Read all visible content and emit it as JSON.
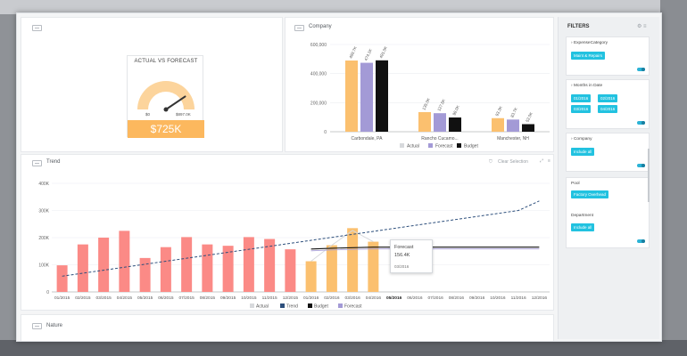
{
  "gauge": {
    "title": "ACTUAL VS FORECAST",
    "min_label": "$0",
    "max_label": "$897.0K",
    "value_label": "$725K",
    "value_fraction": 0.81
  },
  "company_panel": {
    "title": "Company"
  },
  "trend_panel": {
    "title": "Trend",
    "clear_selection": "Clear Selection"
  },
  "next_panel": {
    "title": "Nature"
  },
  "tooltip": {
    "series": "Forecast",
    "value": "156.4K",
    "date": "03/2016"
  },
  "filters": {
    "title": "FILTERS",
    "cards": [
      {
        "label": "ExpenseCategory",
        "chips": [
          "Maint & Repairs"
        ]
      },
      {
        "label": "Months in Date",
        "chips": [
          "01/2016",
          "02/2016",
          "03/2016",
          "04/2016"
        ]
      },
      {
        "label": "Company",
        "chips": [
          "Include all"
        ]
      },
      {
        "label": "Pool",
        "chips": [
          "Factory Overhead"
        ]
      },
      {
        "label": "Department",
        "chips": [
          "Include all"
        ]
      }
    ]
  },
  "colors": {
    "actual": "#fbc06f",
    "forecast": "#a39ad6",
    "budget": "#111111",
    "trend_past": "#fb8a86",
    "trend_line": "#2d4f7c",
    "chip": "#22c2e0"
  },
  "chart_data": [
    {
      "type": "bar",
      "categories": [
        "Carbondale, PA",
        "Rancho Cucamo...",
        "Manchester, NH"
      ],
      "series": [
        {
          "name": "Actual",
          "values": [
            489700,
            135000,
            93300
          ],
          "labels": [
            "489.7K",
            "135.0K",
            "93.3K"
          ]
        },
        {
          "name": "Forecast",
          "values": [
            474100,
            127500,
            83700
          ],
          "labels": [
            "474.1K",
            "127.5K",
            "83.7K"
          ]
        },
        {
          "name": "Budget",
          "values": [
            491000,
            98000,
            52000
          ],
          "labels": [
            "491.0K",
            "98.0K",
            "52.0K"
          ]
        }
      ],
      "yticks": [
        "0",
        "200,000",
        "400,000",
        "600,000"
      ],
      "ylim": [
        0,
        600000
      ],
      "legend": [
        "Actual",
        "Forecast",
        "Budget"
      ],
      "legend_position": "bottom"
    },
    {
      "type": "bar",
      "categories": [
        "01/2015",
        "02/2015",
        "03/2015",
        "04/2015",
        "05/2015",
        "06/2015",
        "07/2015",
        "08/2015",
        "09/2015",
        "10/2015",
        "11/2015",
        "12/2015",
        "01/2016",
        "02/2016",
        "03/2016",
        "04/2016",
        "05/2016",
        "06/2016",
        "07/2016",
        "08/2016",
        "09/2016",
        "10/2016",
        "11/2016",
        "12/2016"
      ],
      "series": [
        {
          "name": "Actual",
          "values": [
            98000,
            175000,
            200000,
            225000,
            125000,
            165000,
            202000,
            175000,
            170000,
            202000,
            195000,
            157000,
            113000,
            172000,
            235000,
            185000,
            null,
            null,
            null,
            null,
            null,
            null,
            null,
            null
          ]
        },
        {
          "name": "Budget",
          "values": [
            null,
            null,
            null,
            null,
            null,
            null,
            null,
            null,
            null,
            null,
            null,
            null,
            158000,
            161000,
            163000,
            165000,
            165000,
            165000,
            165000,
            165000,
            165000,
            165000,
            165000,
            165000
          ]
        },
        {
          "name": "Forecast",
          "values": [
            null,
            null,
            null,
            null,
            null,
            null,
            null,
            null,
            null,
            null,
            null,
            null,
            null,
            null,
            156400,
            null,
            null,
            null,
            null,
            null,
            null,
            null,
            null,
            null
          ]
        },
        {
          "name": "Trend",
          "values": [
            58000,
            69000,
            80000,
            91000,
            102000,
            113000,
            124000,
            135000,
            146000,
            157000,
            168000,
            179000,
            190000,
            201000,
            212000,
            223000,
            234000,
            245000,
            256000,
            267000,
            278000,
            289000,
            300000,
            335000
          ]
        }
      ],
      "yticks": [
        "0",
        "100K",
        "200K",
        "300K",
        "400K"
      ],
      "ylim": [
        0,
        400000
      ],
      "legend": [
        "Actual",
        "Trend",
        "Budget",
        "Forecast"
      ],
      "legend_position": "bottom"
    }
  ]
}
